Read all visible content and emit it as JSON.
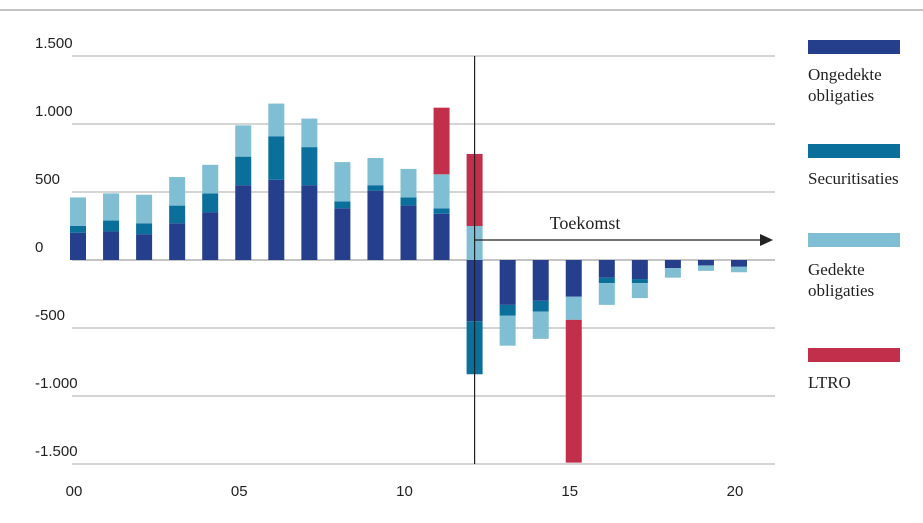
{
  "chart_data": {
    "type": "bar",
    "stacked": true,
    "categories": [
      "00",
      null,
      null,
      null,
      null,
      "05",
      null,
      null,
      null,
      null,
      "10",
      null,
      null,
      null,
      null,
      "15",
      null,
      null,
      null,
      null,
      "20"
    ],
    "series": [
      {
        "name": "Ongedekte obligaties",
        "color": "#263f8c",
        "values": [
          200,
          210,
          190,
          270,
          350,
          550,
          590,
          550,
          380,
          510,
          400,
          340,
          -450,
          -330,
          -300,
          -270,
          -130,
          -140,
          -60,
          -40,
          -50
        ]
      },
      {
        "name": "Securitisaties",
        "color": "#0b6f9b",
        "values": [
          50,
          80,
          80,
          130,
          140,
          210,
          320,
          280,
          50,
          40,
          60,
          40,
          -390,
          -80,
          -80,
          null,
          -40,
          -30,
          null,
          null,
          null
        ]
      },
      {
        "name": "Gedekte obligaties",
        "color": "#80bfd3",
        "values": [
          210,
          200,
          210,
          210,
          210,
          230,
          240,
          210,
          290,
          200,
          210,
          250,
          250,
          -220,
          -200,
          -170,
          -160,
          -110,
          -70,
          -40,
          -40
        ]
      },
      {
        "name": "LTRO",
        "color": "#c22f4b",
        "values": [
          null,
          null,
          null,
          null,
          null,
          null,
          null,
          null,
          null,
          null,
          null,
          490,
          530,
          null,
          null,
          -1050,
          null,
          null,
          null,
          null,
          null
        ]
      }
    ],
    "annotation": "Toekomst",
    "ylim": [
      -1500,
      1500
    ],
    "yticks": [
      {
        "value": -1500,
        "label": "-1.500"
      },
      {
        "value": -1000,
        "label": "-1.000"
      },
      -500,
      0,
      500,
      {
        "value": 1000,
        "label": "1.000"
      },
      {
        "value": 1500,
        "label": "1.500"
      }
    ],
    "grid": true
  }
}
